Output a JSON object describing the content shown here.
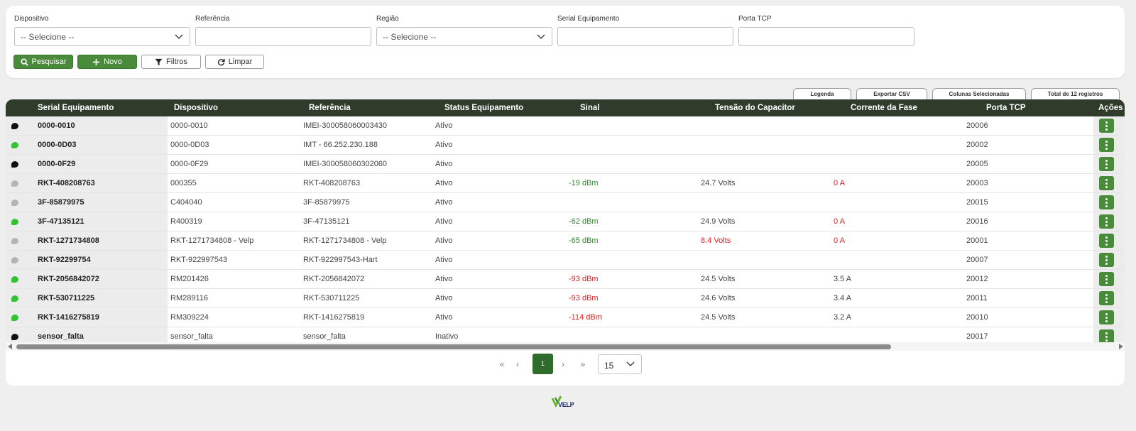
{
  "filters": [
    {
      "label": "Dispositivo",
      "type": "select",
      "value": "-- Selecione --"
    },
    {
      "label": "Referência",
      "type": "text",
      "value": ""
    },
    {
      "label": "Região",
      "type": "select",
      "value": "-- Selecione --"
    },
    {
      "label": "Serial Equipamento",
      "type": "text",
      "value": ""
    },
    {
      "label": "Porta TCP",
      "type": "text",
      "value": ""
    }
  ],
  "buttons": {
    "search": "Pesquisar",
    "new": "Novo",
    "filters": "Filtros",
    "clear": "Limpar"
  },
  "table_tabs": [
    "Legenda",
    "Exportar CSV",
    "Colunas Selecionadas",
    "Total de 12 registros"
  ],
  "columns": [
    "Serial Equipamento",
    "Dispositivo",
    "Referência",
    "Status Equipamento",
    "Sinal",
    "Tensão do Capacitor",
    "Corrente da Fase",
    "Porta TCP",
    "Ações"
  ],
  "colors": {
    "header_bg": "#2f3b2b",
    "primary_green": "#4a8a3b",
    "dot_black": "#111111",
    "dot_green": "#33c233",
    "dot_gray": "#b5b5b5",
    "value_green": "#2e8b2e",
    "value_red": "#e02020"
  },
  "rows": [
    {
      "status_dot": "black",
      "serial": "0000-0010",
      "dispositivo": "0000-0010",
      "referencia": "IMEI-300058060003430",
      "status": "Ativo",
      "sinal": "",
      "sinal_color": "",
      "tensao": "",
      "tensao_color": "",
      "corrente": "",
      "corrente_color": "",
      "porta": "20006"
    },
    {
      "status_dot": "green",
      "serial": "0000-0D03",
      "dispositivo": "0000-0D03",
      "referencia": "IMT - 66.252.230.188",
      "status": "Ativo",
      "sinal": "",
      "sinal_color": "",
      "tensao": "",
      "tensao_color": "",
      "corrente": "",
      "corrente_color": "",
      "porta": "20002"
    },
    {
      "status_dot": "black",
      "serial": "0000-0F29",
      "dispositivo": "0000-0F29",
      "referencia": "IMEI-300058060302060",
      "status": "Ativo",
      "sinal": "",
      "sinal_color": "",
      "tensao": "",
      "tensao_color": "",
      "corrente": "",
      "corrente_color": "",
      "porta": "20005"
    },
    {
      "status_dot": "gray",
      "serial": "RKT-408208763",
      "dispositivo": "000355",
      "referencia": "RKT-408208763",
      "status": "Ativo",
      "sinal": "-19 dBm",
      "sinal_color": "green",
      "tensao": "24.7 Volts",
      "tensao_color": "",
      "corrente": "0 A",
      "corrente_color": "red",
      "porta": "20003"
    },
    {
      "status_dot": "gray",
      "serial": "3F-85879975",
      "dispositivo": "C404040",
      "referencia": "3F-85879975",
      "status": "Ativo",
      "sinal": "",
      "sinal_color": "",
      "tensao": "",
      "tensao_color": "",
      "corrente": "",
      "corrente_color": "",
      "porta": "20015"
    },
    {
      "status_dot": "green",
      "serial": "3F-47135121",
      "dispositivo": "R400319",
      "referencia": "3F-47135121",
      "status": "Ativo",
      "sinal": "-62 dBm",
      "sinal_color": "green",
      "tensao": "24.9 Volts",
      "tensao_color": "",
      "corrente": "0 A",
      "corrente_color": "red",
      "porta": "20016"
    },
    {
      "status_dot": "gray",
      "serial": "RKT-1271734808",
      "dispositivo": "RKT-1271734808 - Velp",
      "referencia": "RKT-1271734808 - Velp",
      "status": "Ativo",
      "sinal": "-65 dBm",
      "sinal_color": "green",
      "tensao": "8.4 Volts",
      "tensao_color": "red",
      "corrente": "0 A",
      "corrente_color": "red",
      "porta": "20001"
    },
    {
      "status_dot": "gray",
      "serial": "RKT-92299754",
      "dispositivo": "RKT-922997543",
      "referencia": "RKT-922997543-Hart",
      "status": "Ativo",
      "sinal": "",
      "sinal_color": "",
      "tensao": "",
      "tensao_color": "",
      "corrente": "",
      "corrente_color": "",
      "porta": "20007"
    },
    {
      "status_dot": "green",
      "serial": "RKT-2056842072",
      "dispositivo": "RM201426",
      "referencia": "RKT-2056842072",
      "status": "Ativo",
      "sinal": "-93 dBm",
      "sinal_color": "red",
      "tensao": "24.5 Volts",
      "tensao_color": "",
      "corrente": "3.5 A",
      "corrente_color": "",
      "porta": "20012"
    },
    {
      "status_dot": "green",
      "serial": "RKT-530711225",
      "dispositivo": "RM289116",
      "referencia": "RKT-530711225",
      "status": "Ativo",
      "sinal": "-93 dBm",
      "sinal_color": "red",
      "tensao": "24.6 Volts",
      "tensao_color": "",
      "corrente": "3.4 A",
      "corrente_color": "",
      "porta": "20011"
    },
    {
      "status_dot": "green",
      "serial": "RKT-1416275819",
      "dispositivo": "RM309224",
      "referencia": "RKT-1416275819",
      "status": "Ativo",
      "sinal": "-114 dBm",
      "sinal_color": "red",
      "tensao": "24.5 Volts",
      "tensao_color": "",
      "corrente": "3.2 A",
      "corrente_color": "",
      "porta": "20010"
    },
    {
      "status_dot": "black",
      "serial": "sensor_falta",
      "dispositivo": "sensor_falta",
      "referencia": "sensor_falta",
      "status": "Inativo",
      "sinal": "",
      "sinal_color": "",
      "tensao": "",
      "tensao_color": "",
      "corrente": "",
      "corrente_color": "",
      "porta": "20017"
    }
  ],
  "pagination": {
    "first": "«",
    "prev": "‹",
    "current_page": "1",
    "next": "›",
    "last": "»",
    "page_size": "15"
  },
  "footer_logo": "VELP"
}
